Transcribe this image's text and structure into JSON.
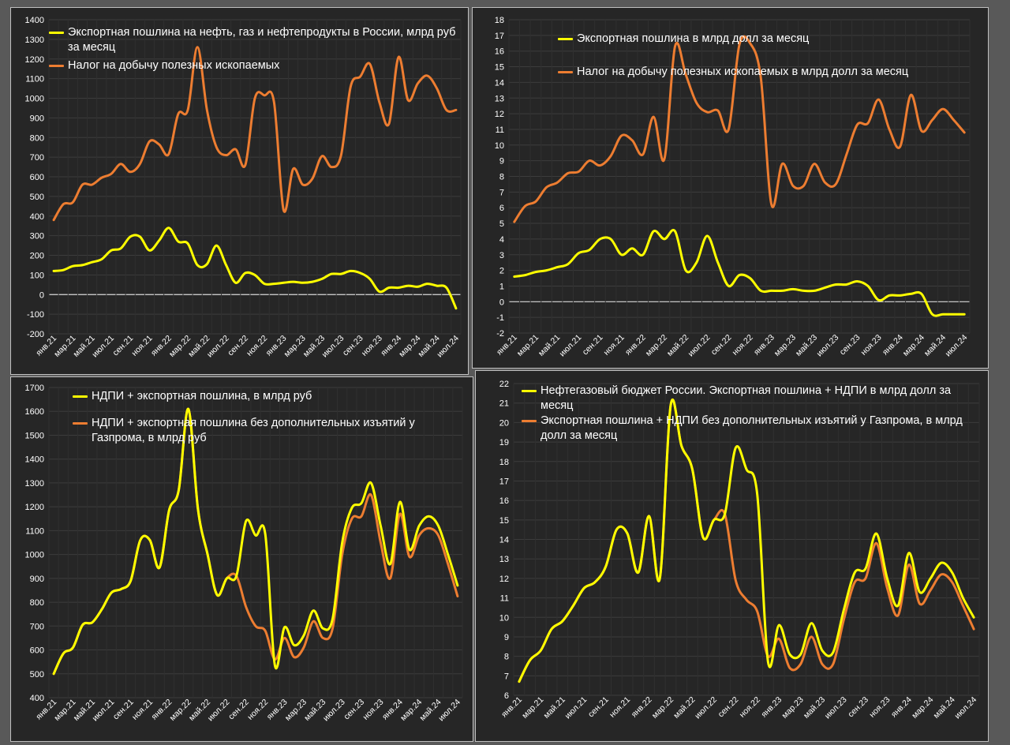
{
  "chart_data": [
    {
      "type": "line",
      "categories": [
        "янв.21",
        "фев.21",
        "мар.21",
        "апр.21",
        "май.21",
        "июн.21",
        "июл.21",
        "авг.21",
        "сен.21",
        "окт.21",
        "ноя.21",
        "дек.21",
        "янв.22",
        "фев.22",
        "мар.22",
        "апр.22",
        "май.22",
        "июн.22",
        "июл.22",
        "авг.22",
        "сен.22",
        "окт.22",
        "ноя.22",
        "дек.22",
        "янв.23",
        "фев.23",
        "мар.23",
        "апр.23",
        "май.23",
        "июн.23",
        "июл.23",
        "авг.23",
        "сен.23",
        "окт.23",
        "ноя.23",
        "дек.23",
        "янв.24",
        "фев.24",
        "мар.24",
        "апр.24",
        "май.24",
        "июн.24",
        "июл.24"
      ],
      "tick_labels": [
        "янв.21",
        "мар.21",
        "май.21",
        "июл.21",
        "сен.21",
        "ноя.21",
        "янв.22",
        "мар.22",
        "май.22",
        "июл.22",
        "сен.22",
        "ноя.22",
        "янв.23",
        "мар.23",
        "май.23",
        "июл.23",
        "сен.23",
        "ноя.23",
        "янв.24",
        "мар.24",
        "май.24",
        "июл.24"
      ],
      "ylim": [
        -200,
        1400
      ],
      "ytick_step": 100,
      "grid": true,
      "legend_position": "top",
      "series": [
        {
          "name": "Экспортная пошлина на нефть, газ и нефтепродукты в России, млрд руб за месяц",
          "color": "#ffff00",
          "values": [
            120,
            125,
            145,
            150,
            165,
            180,
            225,
            235,
            295,
            295,
            225,
            275,
            340,
            270,
            260,
            150,
            155,
            250,
            150,
            60,
            110,
            100,
            55,
            55,
            60,
            65,
            60,
            65,
            80,
            105,
            105,
            120,
            110,
            80,
            15,
            35,
            35,
            45,
            40,
            55,
            45,
            35,
            -70
          ]
        },
        {
          "name": "Налог на добычу полезных ископаемых",
          "color": "#ed7d31",
          "values": [
            380,
            460,
            470,
            560,
            560,
            595,
            615,
            665,
            625,
            665,
            780,
            765,
            715,
            920,
            940,
            1260,
            940,
            750,
            710,
            740,
            660,
            1000,
            1015,
            980,
            430,
            640,
            560,
            590,
            705,
            650,
            710,
            1060,
            1110,
            1175,
            980,
            870,
            1210,
            990,
            1075,
            1115,
            1050,
            940,
            940
          ]
        }
      ]
    },
    {
      "type": "line",
      "categories": [
        "янв.21",
        "фев.21",
        "мар.21",
        "апр.21",
        "май.21",
        "июн.21",
        "июл.21",
        "авг.21",
        "сен.21",
        "окт.21",
        "ноя.21",
        "дек.21",
        "янв.22",
        "фев.22",
        "мар.22",
        "апр.22",
        "май.22",
        "июн.22",
        "июл.22",
        "авг.22",
        "сен.22",
        "окт.22",
        "ноя.22",
        "дек.22",
        "янв.23",
        "фев.23",
        "мар.23",
        "апр.23",
        "май.23",
        "июн.23",
        "июл.23",
        "авг.23",
        "сен.23",
        "окт.23",
        "ноя.23",
        "дек.23",
        "янв.24",
        "фев.24",
        "мар.24",
        "апр.24",
        "май.24",
        "июн.24",
        "июл.24"
      ],
      "tick_labels": [
        "янв.21",
        "мар.21",
        "май.21",
        "июл.21",
        "сен.21",
        "ноя.21",
        "янв.22",
        "мар.22",
        "май.22",
        "июл.22",
        "сен.22",
        "ноя.22",
        "янв.23",
        "мар.23",
        "май.23",
        "июл.23",
        "сен.23",
        "ноя.23",
        "янв.24",
        "мар.24",
        "май.24",
        "июл.24"
      ],
      "ylim": [
        -2,
        18
      ],
      "ytick_step": 1,
      "grid": true,
      "legend_position": "top",
      "series": [
        {
          "name": "Экспортная пошлина в млрд долл за месяц",
          "color": "#ffff00",
          "values": [
            1.6,
            1.7,
            1.9,
            2.0,
            2.2,
            2.4,
            3.1,
            3.3,
            4.0,
            4.0,
            3.0,
            3.4,
            3.0,
            4.5,
            4.0,
            4.5,
            2.0,
            2.5,
            4.2,
            2.5,
            1.0,
            1.7,
            1.5,
            0.7,
            0.7,
            0.7,
            0.8,
            0.7,
            0.7,
            0.9,
            1.1,
            1.1,
            1.3,
            1.0,
            0.1,
            0.4,
            0.4,
            0.5,
            0.5,
            -0.8,
            -0.8,
            -0.8,
            -0.8
          ]
        },
        {
          "name": "Налог на добычу полезных ископаемых в млрд долл за месяц",
          "color": "#ed7d31",
          "values": [
            5.1,
            6.1,
            6.4,
            7.3,
            7.6,
            8.2,
            8.3,
            9.0,
            8.7,
            9.3,
            10.6,
            10.3,
            9.4,
            11.8,
            9.1,
            16.3,
            14.5,
            12.7,
            12.1,
            12.2,
            11.0,
            16.4,
            16.5,
            14.3,
            6.2,
            8.8,
            7.4,
            7.4,
            8.8,
            7.6,
            7.5,
            9.4,
            11.3,
            11.4,
            12.9,
            11.0,
            9.9,
            13.2,
            10.9,
            11.6,
            12.3,
            11.6,
            10.8
          ]
        }
      ]
    },
    {
      "type": "line",
      "categories": [
        "янв.21",
        "фев.21",
        "мар.21",
        "апр.21",
        "май.21",
        "июн.21",
        "июл.21",
        "авг.21",
        "сен.21",
        "окт.21",
        "ноя.21",
        "дек.21",
        "янв.22",
        "фев.22",
        "мар.22",
        "апр.22",
        "май.22",
        "июн.22",
        "июл.22",
        "авг.22",
        "сен.22",
        "окт.22",
        "ноя.22",
        "дек.22",
        "янв.23",
        "фев.23",
        "мар.23",
        "апр.23",
        "май.23",
        "июн.23",
        "июл.23",
        "авг.23",
        "сен.23",
        "окт.23",
        "ноя.23",
        "дек.23",
        "янв.24",
        "фев.24",
        "мар.24",
        "апр.24",
        "май.24",
        "июн.24",
        "июл.24"
      ],
      "tick_labels": [
        "янв.21",
        "мар.21",
        "май.21",
        "июл.21",
        "сен.21",
        "ноя.21",
        "янв.22",
        "мар.22",
        "май.22",
        "июл.22",
        "сен.22",
        "ноя.22",
        "янв.23",
        "мар.23",
        "май.23",
        "июл.23",
        "сен.23",
        "ноя.23",
        "янв.24",
        "мар.24",
        "май.24",
        "июл.24"
      ],
      "ylim": [
        400,
        1700
      ],
      "ytick_step": 100,
      "grid": true,
      "legend_position": "top",
      "series": [
        {
          "name": "НДПИ + экспортная пошлина, в млрд руб",
          "color": "#ffff00",
          "values": [
            500,
            585,
            610,
            705,
            715,
            770,
            840,
            855,
            890,
            1060,
            1060,
            945,
            1185,
            1270,
            1610,
            1190,
            1000,
            830,
            900,
            910,
            1140,
            1080,
            1085,
            535,
            695,
            620,
            660,
            765,
            690,
            730,
            1050,
            1195,
            1215,
            1300,
            1120,
            960,
            1220,
            1020,
            1120,
            1160,
            1120,
            1000,
            870
          ]
        },
        {
          "name": "НДПИ + экспортная пошлина без дополнительных изъятий у Газпрома, в млрд руб",
          "color": "#ed7d31",
          "values": [
            500,
            585,
            610,
            705,
            715,
            770,
            840,
            855,
            890,
            1060,
            1060,
            945,
            1185,
            1270,
            1610,
            1190,
            1000,
            830,
            900,
            910,
            780,
            700,
            680,
            560,
            650,
            570,
            610,
            720,
            650,
            690,
            1000,
            1150,
            1160,
            1250,
            1050,
            900,
            1170,
            990,
            1080,
            1110,
            1080,
            960,
            825
          ]
        }
      ]
    },
    {
      "type": "line",
      "categories": [
        "янв.21",
        "фев.21",
        "мар.21",
        "апр.21",
        "май.21",
        "июн.21",
        "июл.21",
        "авг.21",
        "сен.21",
        "окт.21",
        "ноя.21",
        "дек.21",
        "янв.22",
        "фев.22",
        "мар.22",
        "апр.22",
        "май.22",
        "июн.22",
        "июл.22",
        "авг.22",
        "сен.22",
        "окт.22",
        "ноя.22",
        "дек.22",
        "янв.23",
        "фев.23",
        "мар.23",
        "апр.23",
        "май.23",
        "июн.23",
        "июл.23",
        "авг.23",
        "сен.23",
        "окт.23",
        "ноя.23",
        "дек.23",
        "янв.24",
        "фев.24",
        "мар.24",
        "апр.24",
        "май.24",
        "июн.24",
        "июл.24"
      ],
      "tick_labels": [
        "янв.21",
        "мар.21",
        "май.21",
        "июл.21",
        "сен.21",
        "ноя.21",
        "янв.22",
        "мар.22",
        "май.22",
        "июл.22",
        "сен.22",
        "ноя.22",
        "янв.23",
        "мар.23",
        "май.23",
        "июл.23",
        "сен.23",
        "ноя.23",
        "янв.24",
        "мар.24",
        "май.24",
        "июл.24"
      ],
      "ylim": [
        6,
        22
      ],
      "ytick_step": 1,
      "grid": true,
      "legend_position": "top",
      "series": [
        {
          "name": "Нефтегазовый бюджет России. Экспортная пошлина + НДПИ в млрд долл за месяц",
          "color": "#ffff00",
          "values": [
            6.7,
            7.8,
            8.3,
            9.4,
            9.8,
            10.6,
            11.5,
            11.8,
            12.6,
            14.5,
            14.3,
            12.3,
            15.2,
            12.0,
            20.9,
            18.8,
            17.6,
            14.1,
            15.0,
            15.3,
            18.7,
            17.6,
            16.3,
            7.7,
            9.6,
            8.1,
            8.1,
            9.7,
            8.3,
            8.2,
            10.4,
            12.3,
            12.5,
            14.3,
            12.0,
            10.6,
            13.3,
            11.3,
            12.0,
            12.8,
            12.3,
            11.0,
            10.0
          ]
        },
        {
          "name": "Экспортная пошлина + НДПИ без дополнительных изъятий у Газпрома, в млрд долл за месяц",
          "color": "#ed7d31",
          "values": [
            6.7,
            7.8,
            8.3,
            9.4,
            9.8,
            10.6,
            11.5,
            11.8,
            12.6,
            14.5,
            14.3,
            12.3,
            15.2,
            12.0,
            20.9,
            18.8,
            17.6,
            14.1,
            15.0,
            15.3,
            11.9,
            10.9,
            10.3,
            8.0,
            8.9,
            7.4,
            7.6,
            9.0,
            7.6,
            7.6,
            9.9,
            11.8,
            12.0,
            13.8,
            11.5,
            10.1,
            12.7,
            10.7,
            11.4,
            12.2,
            11.8,
            10.6,
            9.4
          ]
        }
      ]
    }
  ]
}
